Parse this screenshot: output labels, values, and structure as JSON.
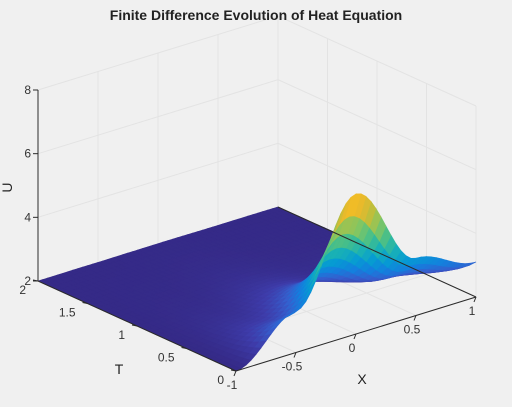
{
  "chart_data": {
    "type": "surface",
    "title": "Finite Difference Evolution of Heat Equation",
    "xlabel": "X",
    "ylabel": "T",
    "zlabel": "U",
    "xlim": [
      -1,
      1
    ],
    "ylim": [
      0,
      2
    ],
    "zlim": [
      2,
      8
    ],
    "xticks": [
      {
        "value": -1,
        "label": "-1"
      },
      {
        "value": -0.5,
        "label": "-0.5"
      },
      {
        "value": 0,
        "label": "0"
      },
      {
        "value": 0.5,
        "label": "0.5"
      },
      {
        "value": 1,
        "label": "1"
      }
    ],
    "yticks": [
      {
        "value": 0,
        "label": "0"
      },
      {
        "value": 0.5,
        "label": "0.5"
      },
      {
        "value": 1,
        "label": "1"
      },
      {
        "value": 1.5,
        "label": "1.5"
      },
      {
        "value": 2,
        "label": "2"
      }
    ],
    "zticks": [
      {
        "value": 2,
        "label": "2"
      },
      {
        "value": 4,
        "label": "4"
      },
      {
        "value": 6,
        "label": "6"
      },
      {
        "value": 8,
        "label": "8"
      }
    ],
    "grid": true,
    "colormap": "parula",
    "surface_samples": {
      "x": [
        -1,
        -0.5,
        0,
        0.5,
        1
      ],
      "u_at_t0": [
        2.0,
        3.3,
        6.4,
        3.8,
        3.1
      ],
      "u_at_t2": [
        2.0,
        2.0,
        2.0,
        2.0,
        2.0
      ]
    }
  }
}
